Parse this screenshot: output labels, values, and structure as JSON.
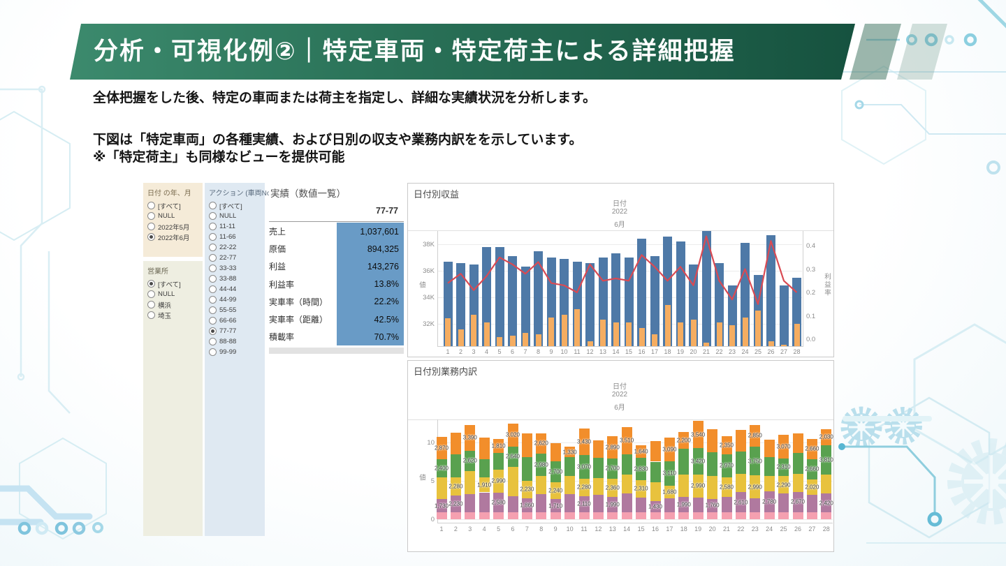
{
  "slide": {
    "title": "分析・可視化例②｜特定車両・特定荷主による詳細把握",
    "body_line1": "全体把握をした後、特定の車両または荷主を指定し、詳細な実績状況を分析します。",
    "body_line2": "下図は「特定車両」の各種実績、および日別の収支や業務内訳をを示しています。",
    "body_line3": "※「特定荷主」も同様なビューを提供可能"
  },
  "filters": [
    {
      "id": "date",
      "title": "日付 の年、月",
      "bg": "#f5ebd8",
      "title_color": "#7a6b4e",
      "items": [
        {
          "label": "[すべて]",
          "selected": false
        },
        {
          "label": "NULL",
          "selected": false
        },
        {
          "label": "2022年5月",
          "selected": false
        },
        {
          "label": "2022年6月",
          "selected": true
        }
      ]
    },
    {
      "id": "office",
      "title": "営業所",
      "bg": "#eeeee1",
      "title_color": "#6d6a56",
      "items": [
        {
          "label": "[すべて]",
          "selected": true
        },
        {
          "label": "NULL",
          "selected": false
        },
        {
          "label": "横浜",
          "selected": false
        },
        {
          "label": "埼玉",
          "selected": false
        }
      ]
    },
    {
      "id": "vehicle",
      "title": "アクション (車両No)",
      "bg": "#dfe9f2",
      "title_color": "#5a6b7d",
      "items": [
        {
          "label": "[すべて]",
          "selected": false
        },
        {
          "label": "NULL",
          "selected": false
        },
        {
          "label": "11-11",
          "selected": false
        },
        {
          "label": "11-66",
          "selected": false
        },
        {
          "label": "22-22",
          "selected": false
        },
        {
          "label": "22-77",
          "selected": false
        },
        {
          "label": "33-33",
          "selected": false
        },
        {
          "label": "33-88",
          "selected": false
        },
        {
          "label": "44-44",
          "selected": false
        },
        {
          "label": "44-99",
          "selected": false
        },
        {
          "label": "55-55",
          "selected": false
        },
        {
          "label": "66-66",
          "selected": false
        },
        {
          "label": "77-77",
          "selected": true
        },
        {
          "label": "88-88",
          "selected": false
        },
        {
          "label": "99-99",
          "selected": false
        }
      ]
    }
  ],
  "metrics": {
    "title": "実績（数値一覧）",
    "column_header": "77-77",
    "value_bg": "#699bc6",
    "rows": [
      {
        "label": "売上",
        "value": "1,037,601"
      },
      {
        "label": "原価",
        "value": "894,325"
      },
      {
        "label": "利益",
        "value": "143,276"
      },
      {
        "label": "利益率",
        "value": "13.8%"
      },
      {
        "label": "実車率（時間）",
        "value": "22.2%"
      },
      {
        "label": "実車率（距離）",
        "value": "42.5%"
      },
      {
        "label": "積載率",
        "value": "70.7%"
      }
    ]
  },
  "chart_data": [
    {
      "type": "bar+line",
      "title": "日付別収益",
      "header_lines": [
        "日付",
        "2022",
        "6月"
      ],
      "xlabel_days": [
        1,
        2,
        3,
        4,
        5,
        6,
        7,
        8,
        9,
        10,
        11,
        12,
        13,
        14,
        15,
        16,
        17,
        18,
        19,
        20,
        21,
        22,
        23,
        24,
        25,
        26,
        27,
        28
      ],
      "ylabel_left": "値",
      "ylabel_right": "利益率",
      "unit_left": "K (thousands)",
      "yticks_left": [
        {
          "v": 38,
          "label": "38K"
        },
        {
          "v": 36,
          "label": "36K"
        },
        {
          "v": 34,
          "label": "34K"
        },
        {
          "v": 32,
          "label": "32K"
        }
      ],
      "ylim_left": [
        30.3,
        39.8
      ],
      "yticks_right": [
        {
          "v": 0.4,
          "label": "0.4"
        },
        {
          "v": 0.3,
          "label": "0.3"
        },
        {
          "v": 0.2,
          "label": "0.2"
        },
        {
          "v": 0.1,
          "label": "0.1"
        },
        {
          "v": 0.0,
          "label": "0.0"
        }
      ],
      "series": [
        {
          "name": "売上(青棒)",
          "type": "bar",
          "color": "#4e79a7",
          "values": [
            36.7,
            36.6,
            36.5,
            37.8,
            37.8,
            37.1,
            36.3,
            37.5,
            37.0,
            36.9,
            36.7,
            36.6,
            37.0,
            37.3,
            37.0,
            38.4,
            37.1,
            38.6,
            38.2,
            36.5,
            39.0,
            36.6,
            34.9,
            38.1,
            35.7,
            38.7,
            34.9,
            35.5
          ]
        },
        {
          "name": "原価(オレンジ棒)",
          "type": "bar",
          "color": "#f5ad61",
          "values": [
            32.4,
            31.6,
            32.7,
            32.1,
            31.0,
            31.1,
            31.3,
            31.2,
            32.5,
            32.7,
            33.1,
            30.7,
            32.3,
            32.1,
            32.1,
            31.7,
            31.2,
            33.4,
            32.1,
            32.3,
            30.6,
            32.1,
            31.9,
            32.5,
            33.0,
            30.7,
            30.4,
            32.0
          ]
        },
        {
          "name": "利益率(赤線)",
          "type": "line",
          "axis": "right",
          "color": "#d94a53",
          "values": [
            0.24,
            0.28,
            0.21,
            0.27,
            0.35,
            0.32,
            0.28,
            0.33,
            0.24,
            0.23,
            0.2,
            0.32,
            0.25,
            0.26,
            0.25,
            0.36,
            0.31,
            0.25,
            0.31,
            0.23,
            0.44,
            0.25,
            0.17,
            0.3,
            0.15,
            0.42,
            0.25,
            0.2
          ]
        }
      ]
    },
    {
      "type": "stacked-bar",
      "title": "日付別業務内訳",
      "header_lines": [
        "日付",
        "2022",
        "6月"
      ],
      "ylabel": "値",
      "yticks": [
        {
          "v": 10000,
          "label": "10"
        },
        {
          "v": 5000,
          "label": "5"
        },
        {
          "v": 0,
          "label": "0"
        }
      ],
      "segments_order": [
        "pink",
        "purple",
        "yellow",
        "green",
        "orange"
      ],
      "colors": {
        "pink": "#f5a0b0",
        "purple": "#b0799f",
        "yellow": "#e8c23d",
        "green": "#59a14f",
        "orange": "#f28e2b"
      },
      "days": [
        {
          "day": 1,
          "values": {
            "pink": 900,
            "purple": 1730,
            "yellow": 2800,
            "green": 2400,
            "orange": 2870
          },
          "labeled": [
            "purple",
            "green",
            "orange"
          ]
        },
        {
          "day": 2,
          "values": {
            "pink": 900,
            "purple": 2230,
            "yellow": 2280,
            "green": 3000,
            "orange": 2900
          },
          "labeled": [
            "purple",
            "yellow"
          ]
        },
        {
          "day": 3,
          "values": {
            "pink": 900,
            "purple": 2400,
            "yellow": 3000,
            "green": 2620,
            "orange": 3390
          },
          "labeled": [
            "green",
            "orange"
          ]
        },
        {
          "day": 4,
          "values": {
            "pink": 900,
            "purple": 2600,
            "yellow": 1910,
            "green": 2400,
            "orange": 2800
          },
          "labeled": [
            "yellow"
          ]
        },
        {
          "day": 5,
          "values": {
            "pink": 900,
            "purple": 2580,
            "yellow": 2990,
            "green": 2200,
            "orange": 1810
          },
          "labeled": [
            "purple",
            "yellow",
            "orange"
          ]
        },
        {
          "day": 6,
          "values": {
            "pink": 900,
            "purple": 2100,
            "yellow": 3840,
            "green": 2640,
            "orange": 3020
          },
          "labeled": [
            "green",
            "orange"
          ]
        },
        {
          "day": 7,
          "values": {
            "pink": 900,
            "purple": 1860,
            "yellow": 2230,
            "green": 3100,
            "orange": 3100
          },
          "labeled": [
            "purple",
            "yellow"
          ]
        },
        {
          "day": 8,
          "values": {
            "pink": 900,
            "purple": 2400,
            "yellow": 2300,
            "green": 2980,
            "orange": 2620
          },
          "labeled": [
            "green",
            "orange"
          ]
        },
        {
          "day": 9,
          "values": {
            "pink": 900,
            "purple": 1710,
            "yellow": 2240,
            "green": 2700,
            "orange": 2400
          },
          "labeled": [
            "purple",
            "yellow",
            "green"
          ]
        },
        {
          "day": 10,
          "values": {
            "pink": 900,
            "purple": 2400,
            "yellow": 2300,
            "green": 2500,
            "orange": 1330
          },
          "labeled": [
            "orange"
          ]
        },
        {
          "day": 11,
          "values": {
            "pink": 900,
            "purple": 2110,
            "yellow": 2280,
            "green": 3070,
            "orange": 3430
          },
          "labeled": [
            "purple",
            "yellow",
            "green",
            "orange"
          ]
        },
        {
          "day": 12,
          "values": {
            "pink": 900,
            "purple": 2300,
            "yellow": 2200,
            "green": 2600,
            "orange": 2300
          },
          "labeled": []
        },
        {
          "day": 13,
          "values": {
            "pink": 900,
            "purple": 1990,
            "yellow": 2360,
            "green": 2700,
            "orange": 2890
          },
          "labeled": [
            "purple",
            "yellow",
            "green",
            "orange"
          ]
        },
        {
          "day": 14,
          "values": {
            "pink": 900,
            "purple": 2500,
            "yellow": 2400,
            "green": 2690,
            "orange": 3510
          },
          "labeled": [
            "orange"
          ]
        },
        {
          "day": 15,
          "values": {
            "pink": 900,
            "purple": 1920,
            "yellow": 2310,
            "green": 2830,
            "orange": 1640
          },
          "labeled": [
            "yellow",
            "green",
            "orange"
          ]
        },
        {
          "day": 16,
          "values": {
            "pink": 900,
            "purple": 1430,
            "yellow": 2500,
            "green": 2670,
            "orange": 2700
          },
          "labeled": [
            "purple"
          ]
        },
        {
          "day": 17,
          "values": {
            "pink": 900,
            "purple": 1820,
            "yellow": 1680,
            "green": 3110,
            "orange": 3090
          },
          "labeled": [
            "yellow",
            "green",
            "orange"
          ]
        },
        {
          "day": 18,
          "values": {
            "pink": 900,
            "purple": 1990,
            "yellow": 2900,
            "green": 3410,
            "orange": 2200
          },
          "labeled": [
            "purple",
            "orange"
          ]
        },
        {
          "day": 19,
          "values": {
            "pink": 900,
            "purple": 1950,
            "yellow": 2990,
            "green": 3420,
            "orange": 3540
          },
          "labeled": [
            "yellow",
            "green",
            "orange"
          ]
        },
        {
          "day": 20,
          "values": {
            "pink": 900,
            "purple": 1760,
            "yellow": 3000,
            "green": 3100,
            "orange": 2940
          },
          "labeled": [
            "purple"
          ]
        },
        {
          "day": 21,
          "values": {
            "pink": 900,
            "purple": 2000,
            "yellow": 2580,
            "green": 2970,
            "orange": 2350
          },
          "labeled": [
            "yellow",
            "green",
            "orange"
          ]
        },
        {
          "day": 22,
          "values": {
            "pink": 900,
            "purple": 2610,
            "yellow": 2400,
            "green": 2900,
            "orange": 2790
          },
          "labeled": [
            "purple"
          ]
        },
        {
          "day": 23,
          "values": {
            "pink": 900,
            "purple": 1810,
            "yellow": 2990,
            "green": 3750,
            "orange": 2850
          },
          "labeled": [
            "yellow",
            "green",
            "orange"
          ]
        },
        {
          "day": 24,
          "values": {
            "pink": 900,
            "purple": 2780,
            "yellow": 2000,
            "green": 2400,
            "orange": 2320
          },
          "labeled": [
            "purple"
          ]
        },
        {
          "day": 25,
          "values": {
            "pink": 900,
            "purple": 2430,
            "yellow": 2290,
            "green": 2310,
            "orange": 3070
          },
          "labeled": [
            "yellow",
            "green",
            "orange"
          ]
        },
        {
          "day": 26,
          "values": {
            "pink": 900,
            "purple": 2670,
            "yellow": 2300,
            "green": 2730,
            "orange": 2600
          },
          "labeled": [
            "purple"
          ]
        },
        {
          "day": 27,
          "values": {
            "pink": 900,
            "purple": 2260,
            "yellow": 2020,
            "green": 2660,
            "orange": 2660
          },
          "labeled": [
            "yellow",
            "green",
            "orange"
          ]
        },
        {
          "day": 28,
          "values": {
            "pink": 900,
            "purple": 2420,
            "yellow": 2540,
            "green": 3810,
            "orange": 2030
          },
          "labeled": [
            "purple",
            "green",
            "orange"
          ]
        }
      ]
    }
  ]
}
